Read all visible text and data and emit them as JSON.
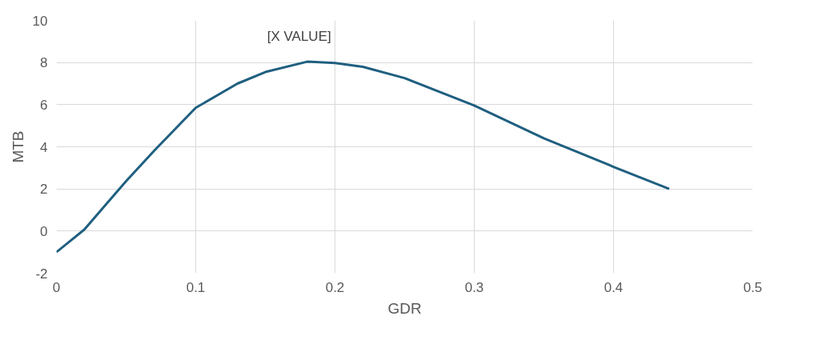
{
  "chart_data": {
    "type": "line",
    "xlabel": "GDR",
    "ylabel": "MTB",
    "x": [
      0,
      0.02,
      0.05,
      0.07,
      0.1,
      0.13,
      0.15,
      0.18,
      0.2,
      0.22,
      0.25,
      0.3,
      0.35,
      0.4,
      0.44
    ],
    "series": [
      {
        "color": "#1f5f80",
        "values": [
          -1,
          0.07,
          2.37,
          3.8,
          5.85,
          7.0,
          7.55,
          8.04,
          7.98,
          7.8,
          7.26,
          5.96,
          4.4,
          3.05,
          2.0
        ]
      }
    ],
    "annotations": [
      {
        "text": "[X VALUE]",
        "x": 0.18,
        "y": 8.04
      }
    ],
    "xlim": [
      0,
      0.5
    ],
    "ylim": [
      -2,
      10
    ],
    "xticks": [
      0,
      0.1,
      0.2,
      0.3,
      0.4,
      0.5
    ],
    "yticks": [
      -2,
      0,
      2,
      4,
      6,
      8,
      10
    ],
    "grid": true,
    "marker": "none",
    "line_style": "solid"
  }
}
